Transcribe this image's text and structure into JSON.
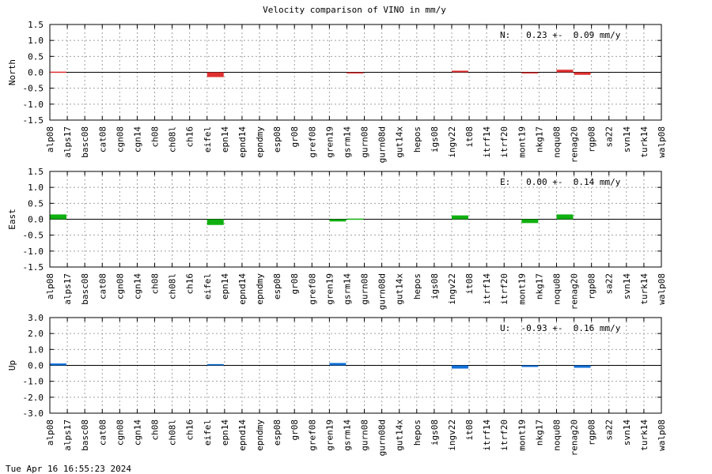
{
  "chart_data": {
    "type": "bar",
    "title": "Velocity comparison of VINO in mm/y",
    "timestamp": "Tue Apr 16 16:55:23 2024",
    "categories": [
      "alp08",
      "alps17",
      "basc08",
      "cat08",
      "cgn08",
      "cgn14",
      "ch08",
      "ch08l",
      "ch16",
      "eifel",
      "epn14",
      "epnd14",
      "epndmy",
      "esp08",
      "gr08",
      "gref08",
      "gren19",
      "gsrm14",
      "gurn08",
      "gurn08d",
      "gut14x",
      "hepos",
      "igs08",
      "ingv22",
      "it08",
      "itrf14",
      "itrf20",
      "mont19",
      "nkg17",
      "noqu08",
      "renag20",
      "rgp08",
      "sa22",
      "svn14",
      "turk14",
      "walp08"
    ],
    "panels": [
      {
        "ylabel": "North",
        "color": "#e03030",
        "ylim": [
          -1.5,
          1.5
        ],
        "yticks": [
          "1.5",
          "1.0",
          "0.5",
          "0.0",
          "-0.5",
          "-1.0",
          "-1.5"
        ],
        "summary": "N:   0.23 +-  0.09 mm/y",
        "values": [
          0.02,
          null,
          null,
          null,
          null,
          null,
          null,
          null,
          null,
          -0.15,
          null,
          null,
          null,
          null,
          null,
          null,
          null,
          -0.03,
          null,
          null,
          null,
          null,
          null,
          0.05,
          null,
          null,
          null,
          -0.02,
          null,
          0.08,
          -0.08,
          null,
          null,
          null,
          null,
          null
        ]
      },
      {
        "ylabel": "East",
        "color": "#10b010",
        "ylim": [
          -1.5,
          1.5
        ],
        "yticks": [
          "1.5",
          "1.0",
          "0.5",
          "0.0",
          "-0.5",
          "-1.0",
          "-1.5"
        ],
        "summary": "E:   0.00 +-  0.14 mm/y",
        "values": [
          0.15,
          null,
          null,
          null,
          null,
          null,
          null,
          null,
          null,
          -0.18,
          null,
          null,
          null,
          null,
          null,
          null,
          -0.07,
          0.02,
          null,
          null,
          null,
          null,
          null,
          0.12,
          null,
          null,
          null,
          -0.12,
          null,
          0.15,
          null,
          null,
          null,
          null,
          null,
          null
        ]
      },
      {
        "ylabel": "Up",
        "color": "#1070d8",
        "ylim": [
          -3.0,
          3.0
        ],
        "yticks": [
          "3.0",
          "2.0",
          "1.0",
          "0.0",
          "-1.0",
          "-2.0",
          "-3.0"
        ],
        "summary": "U:  -0.93 +-  0.16 mm/y",
        "values": [
          0.12,
          null,
          null,
          null,
          null,
          null,
          null,
          null,
          null,
          0.08,
          null,
          null,
          null,
          null,
          null,
          null,
          0.15,
          null,
          null,
          null,
          null,
          null,
          null,
          -0.2,
          null,
          null,
          null,
          -0.1,
          null,
          null,
          -0.15,
          null,
          null,
          null,
          null,
          null
        ]
      }
    ],
    "grid": true
  }
}
